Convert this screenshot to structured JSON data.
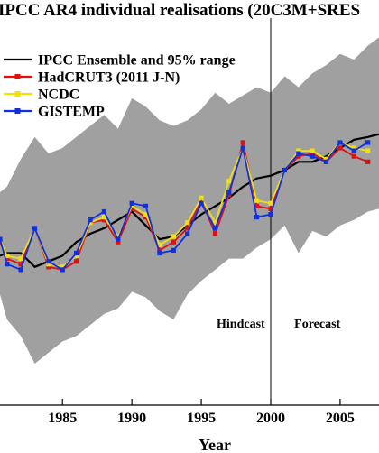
{
  "chart_data": {
    "type": "line",
    "title": "IPCC AR4 individual realisations (20C3M+SRES",
    "xlabel": "Year",
    "ylabel": "",
    "xlim": [
      1980.5,
      2007.8
    ],
    "ylim": [
      -0.55,
      0.85
    ],
    "x_ticks": [
      1985,
      1990,
      1995,
      2000,
      2005
    ],
    "grid": false,
    "legend_position": "top-left",
    "vline": 2000,
    "annotations": [
      {
        "text": "Hindcast",
        "x": 1996.1,
        "y": -0.27
      },
      {
        "text": "Forecast",
        "x": 2001.7,
        "y": -0.27
      }
    ],
    "range_band": {
      "color": "#a0a0a0",
      "x": [
        1980.5,
        1981,
        1982,
        1983,
        1984,
        1985,
        1986,
        1987,
        1988,
        1989,
        1990,
        1991,
        1992,
        1993,
        1994,
        1995,
        1996,
        1997,
        1998,
        1999,
        2000,
        2001,
        2002,
        2003,
        2004,
        2005,
        2006,
        2007,
        2007.8
      ],
      "upper": [
        0.22,
        0.24,
        0.34,
        0.42,
        0.36,
        0.38,
        0.42,
        0.46,
        0.5,
        0.45,
        0.56,
        0.53,
        0.48,
        0.46,
        0.48,
        0.52,
        0.58,
        0.54,
        0.57,
        0.6,
        0.58,
        0.64,
        0.6,
        0.65,
        0.68,
        0.72,
        0.7,
        0.75,
        0.78
      ],
      "lower": [
        -0.15,
        -0.24,
        -0.3,
        -0.4,
        -0.36,
        -0.32,
        -0.3,
        -0.26,
        -0.22,
        -0.2,
        -0.14,
        -0.16,
        -0.21,
        -0.24,
        -0.15,
        -0.1,
        -0.06,
        -0.02,
        -0.02,
        0.02,
        0.05,
        0.1,
        0.0,
        0.08,
        0.06,
        0.1,
        0.12,
        0.15,
        0.16
      ]
    },
    "series": [
      {
        "name": "IPCC Ensemble and 95% range",
        "color": "#000000",
        "marker": "none",
        "x": [
          1980.5,
          1981,
          1982,
          1983,
          1984,
          1985,
          1986,
          1987,
          1988,
          1989,
          1990,
          1991,
          1992,
          1993,
          1994,
          1995,
          1996,
          1997,
          1998,
          1999,
          2000,
          2001,
          2002,
          2003,
          2004,
          2005,
          2006,
          2007,
          2007.8
        ],
        "y": [
          -0.01,
          0.0,
          0.0,
          -0.05,
          -0.03,
          -0.01,
          0.04,
          0.07,
          0.09,
          0.12,
          0.15,
          0.1,
          0.05,
          0.06,
          0.1,
          0.14,
          0.17,
          0.2,
          0.24,
          0.27,
          0.28,
          0.3,
          0.33,
          0.33,
          0.35,
          0.38,
          0.41,
          0.42,
          0.43
        ]
      },
      {
        "name": "HadCRUT3 (2011 J-N)",
        "color": "#e01010",
        "marker": "square",
        "x": [
          1980.5,
          1981,
          1982,
          1983,
          1984,
          1985,
          1986,
          1987,
          1988,
          1989,
          1990,
          1991,
          1992,
          1993,
          1994,
          1995,
          1996,
          1997,
          1998,
          1999,
          2000,
          2001,
          2002,
          2003,
          2004,
          2005,
          2006,
          2007
        ],
        "y": [
          0.04,
          -0.02,
          -0.04,
          0.09,
          -0.05,
          -0.06,
          -0.03,
          0.11,
          0.12,
          0.04,
          0.16,
          0.13,
          0.01,
          0.04,
          0.09,
          0.19,
          0.07,
          0.21,
          0.4,
          0.17,
          0.16,
          0.3,
          0.35,
          0.36,
          0.33,
          0.38,
          0.35,
          0.33
        ]
      },
      {
        "name": "NCDC",
        "color": "#f0e010",
        "marker": "square",
        "x": [
          1980.5,
          1981,
          1982,
          1983,
          1984,
          1985,
          1986,
          1987,
          1988,
          1989,
          1990,
          1991,
          1992,
          1993,
          1994,
          1995,
          1996,
          1997,
          1998,
          1999,
          2000,
          2001,
          2002,
          2003,
          2004,
          2005,
          2006,
          2007
        ],
        "y": [
          0.05,
          -0.01,
          -0.02,
          0.09,
          -0.04,
          -0.05,
          -0.01,
          0.11,
          0.13,
          0.06,
          0.17,
          0.14,
          0.03,
          0.06,
          0.11,
          0.2,
          0.11,
          0.26,
          0.38,
          0.19,
          0.18,
          0.3,
          0.37,
          0.37,
          0.34,
          0.4,
          0.38,
          0.37
        ]
      },
      {
        "name": "GISTEMP",
        "color": "#1030e0",
        "marker": "square",
        "x": [
          1980.5,
          1981,
          1982,
          1983,
          1984,
          1985,
          1986,
          1987,
          1988,
          1989,
          1990,
          1991,
          1992,
          1993,
          1994,
          1995,
          1996,
          1997,
          1998,
          1999,
          2000,
          2001,
          2002,
          2003,
          2004,
          2005,
          2006,
          2007
        ],
        "y": [
          0.05,
          -0.04,
          -0.06,
          0.09,
          -0.03,
          -0.06,
          0.0,
          0.12,
          0.15,
          0.05,
          0.18,
          0.17,
          0.0,
          0.01,
          0.07,
          0.18,
          0.09,
          0.22,
          0.38,
          0.13,
          0.14,
          0.3,
          0.36,
          0.35,
          0.33,
          0.4,
          0.37,
          0.4
        ]
      }
    ]
  }
}
